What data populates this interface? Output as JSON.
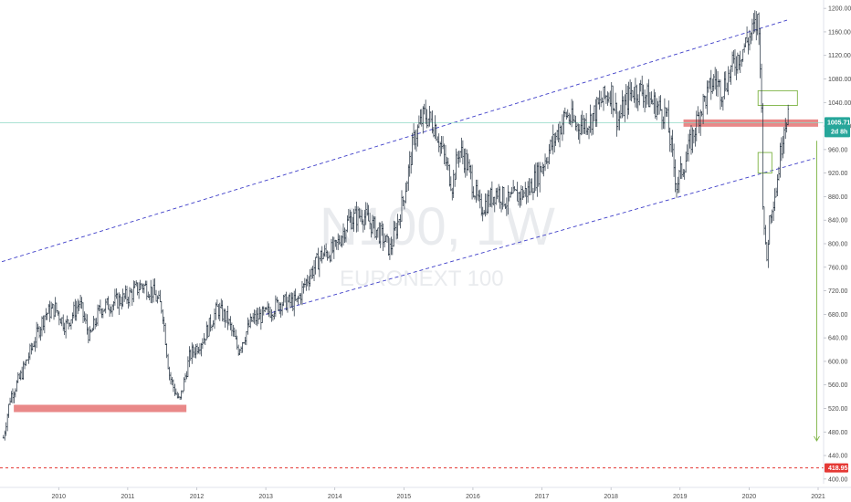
{
  "colors": {
    "background": "#ffffff",
    "bar_up": "#1d2b3a",
    "bar_down": "#1d2b3a",
    "channel": "#3f3fc9",
    "support_zone": "#e57373",
    "current_price_line": "#8fd8c6",
    "current_price_badge": "#26a69a",
    "target_line": "#e53935",
    "target_badge": "#e53935",
    "projection": "#7cb342",
    "axis_text": "#4a4a4a"
  },
  "watermark": {
    "symbol": "N100, 1W",
    "name": "EURONEXT 100"
  },
  "price_badge": {
    "value": "1005.71",
    "countdown": "2d 8h"
  },
  "target_badge": {
    "value": "418.95"
  },
  "chart_data": {
    "type": "line",
    "title": "",
    "xlabel": "",
    "ylabel": "",
    "x_axis": {
      "type": "time",
      "range": [
        "2009-03-01",
        "2021-01-01"
      ],
      "tick_labels": [
        "2010",
        "2011",
        "2012",
        "2013",
        "2014",
        "2015",
        "2016",
        "2017",
        "2018",
        "2019",
        "2020",
        "2021"
      ]
    },
    "y_axis": {
      "range": [
        392,
        1208
      ],
      "tick_labels": [
        "400.00",
        "440.00",
        "480.00",
        "520.00",
        "560.00",
        "600.00",
        "640.00",
        "680.00",
        "720.00",
        "760.00",
        "800.00",
        "840.00",
        "880.00",
        "920.00",
        "960.00",
        "1000.00",
        "1040.00",
        "1080.00",
        "1120.00",
        "1160.00",
        "1200.00"
      ]
    },
    "series": [
      {
        "x": [
          2009.2,
          2009.3,
          2009.45,
          2009.6,
          2009.8,
          2009.95,
          2010.1,
          2010.3,
          2010.45,
          2010.6,
          2010.8,
          2011.0,
          2011.2,
          2011.35,
          2011.5,
          2011.6,
          2011.65,
          2011.75,
          2011.9,
          2012.1,
          2012.3,
          2012.45,
          2012.6,
          2012.8,
          2013.0,
          2013.2,
          2013.35,
          2013.45,
          2013.6,
          2013.8,
          2014.0,
          2014.2,
          2014.4,
          2014.55,
          2014.7,
          2014.8,
          2014.9,
          2015.0,
          2015.15,
          2015.3,
          2015.45,
          2015.6,
          2015.7,
          2015.8,
          2015.9,
          2016.1,
          2016.2,
          2016.35,
          2016.5,
          2016.6,
          2016.8,
          2016.95,
          2017.15,
          2017.35,
          2017.5,
          2017.7,
          2017.85,
          2018.0,
          2018.1,
          2018.3,
          2018.45,
          2018.6,
          2018.8,
          2018.95,
          2019.1,
          2019.3,
          2019.5,
          2019.6,
          2019.8,
          2020.0,
          2020.1,
          2020.13,
          2020.17,
          2020.2,
          2020.25,
          2020.3,
          2020.4,
          2020.5,
          2020.58
        ],
        "values": [
          470,
          540,
          575,
          620,
          680,
          690,
          660,
          700,
          640,
          690,
          700,
          710,
          730,
          720,
          690,
          580,
          560,
          530,
          610,
          640,
          690,
          670,
          620,
          670,
          680,
          700,
          700,
          700,
          740,
          780,
          790,
          840,
          850,
          830,
          810,
          790,
          830,
          880,
          980,
          1020,
          1000,
          940,
          900,
          960,
          940,
          860,
          870,
          890,
          870,
          880,
          890,
          920,
          970,
          1020,
          1000,
          1010,
          1040,
          1060,
          1010,
          1060,
          1060,
          1040,
          1020,
          900,
          950,
          1030,
          1080,
          1060,
          1110,
          1150,
          1170,
          1180,
          1100,
          880,
          760,
          850,
          900,
          1000,
          1030
        ]
      }
    ],
    "annotations": [
      {
        "type": "channel_line",
        "points": [
          [
            2009.0,
            763
          ],
          [
            2020.55,
            1180
          ]
        ]
      },
      {
        "type": "channel_line",
        "points": [
          [
            2013.0,
            680
          ],
          [
            2020.95,
            945
          ]
        ]
      },
      {
        "type": "support_zone",
        "from": 2009.35,
        "to": 2011.85,
        "value": 520
      },
      {
        "type": "resistance_zone",
        "from": 2019.05,
        "to": 2021.0,
        "value": 1005
      },
      {
        "type": "price_line",
        "value": 1005.71
      },
      {
        "type": "target_line",
        "value": 418.95
      },
      {
        "type": "projection_box",
        "from": 2020.13,
        "to": 2020.7,
        "range": [
          1035,
          1060
        ]
      },
      {
        "type": "projection_box",
        "from": 2020.13,
        "to": 2020.33,
        "range": [
          920,
          955
        ]
      },
      {
        "type": "projection_arrow",
        "x": 2020.98,
        "from": 975,
        "to": 465
      }
    ],
    "grid": false,
    "legend": "none"
  }
}
